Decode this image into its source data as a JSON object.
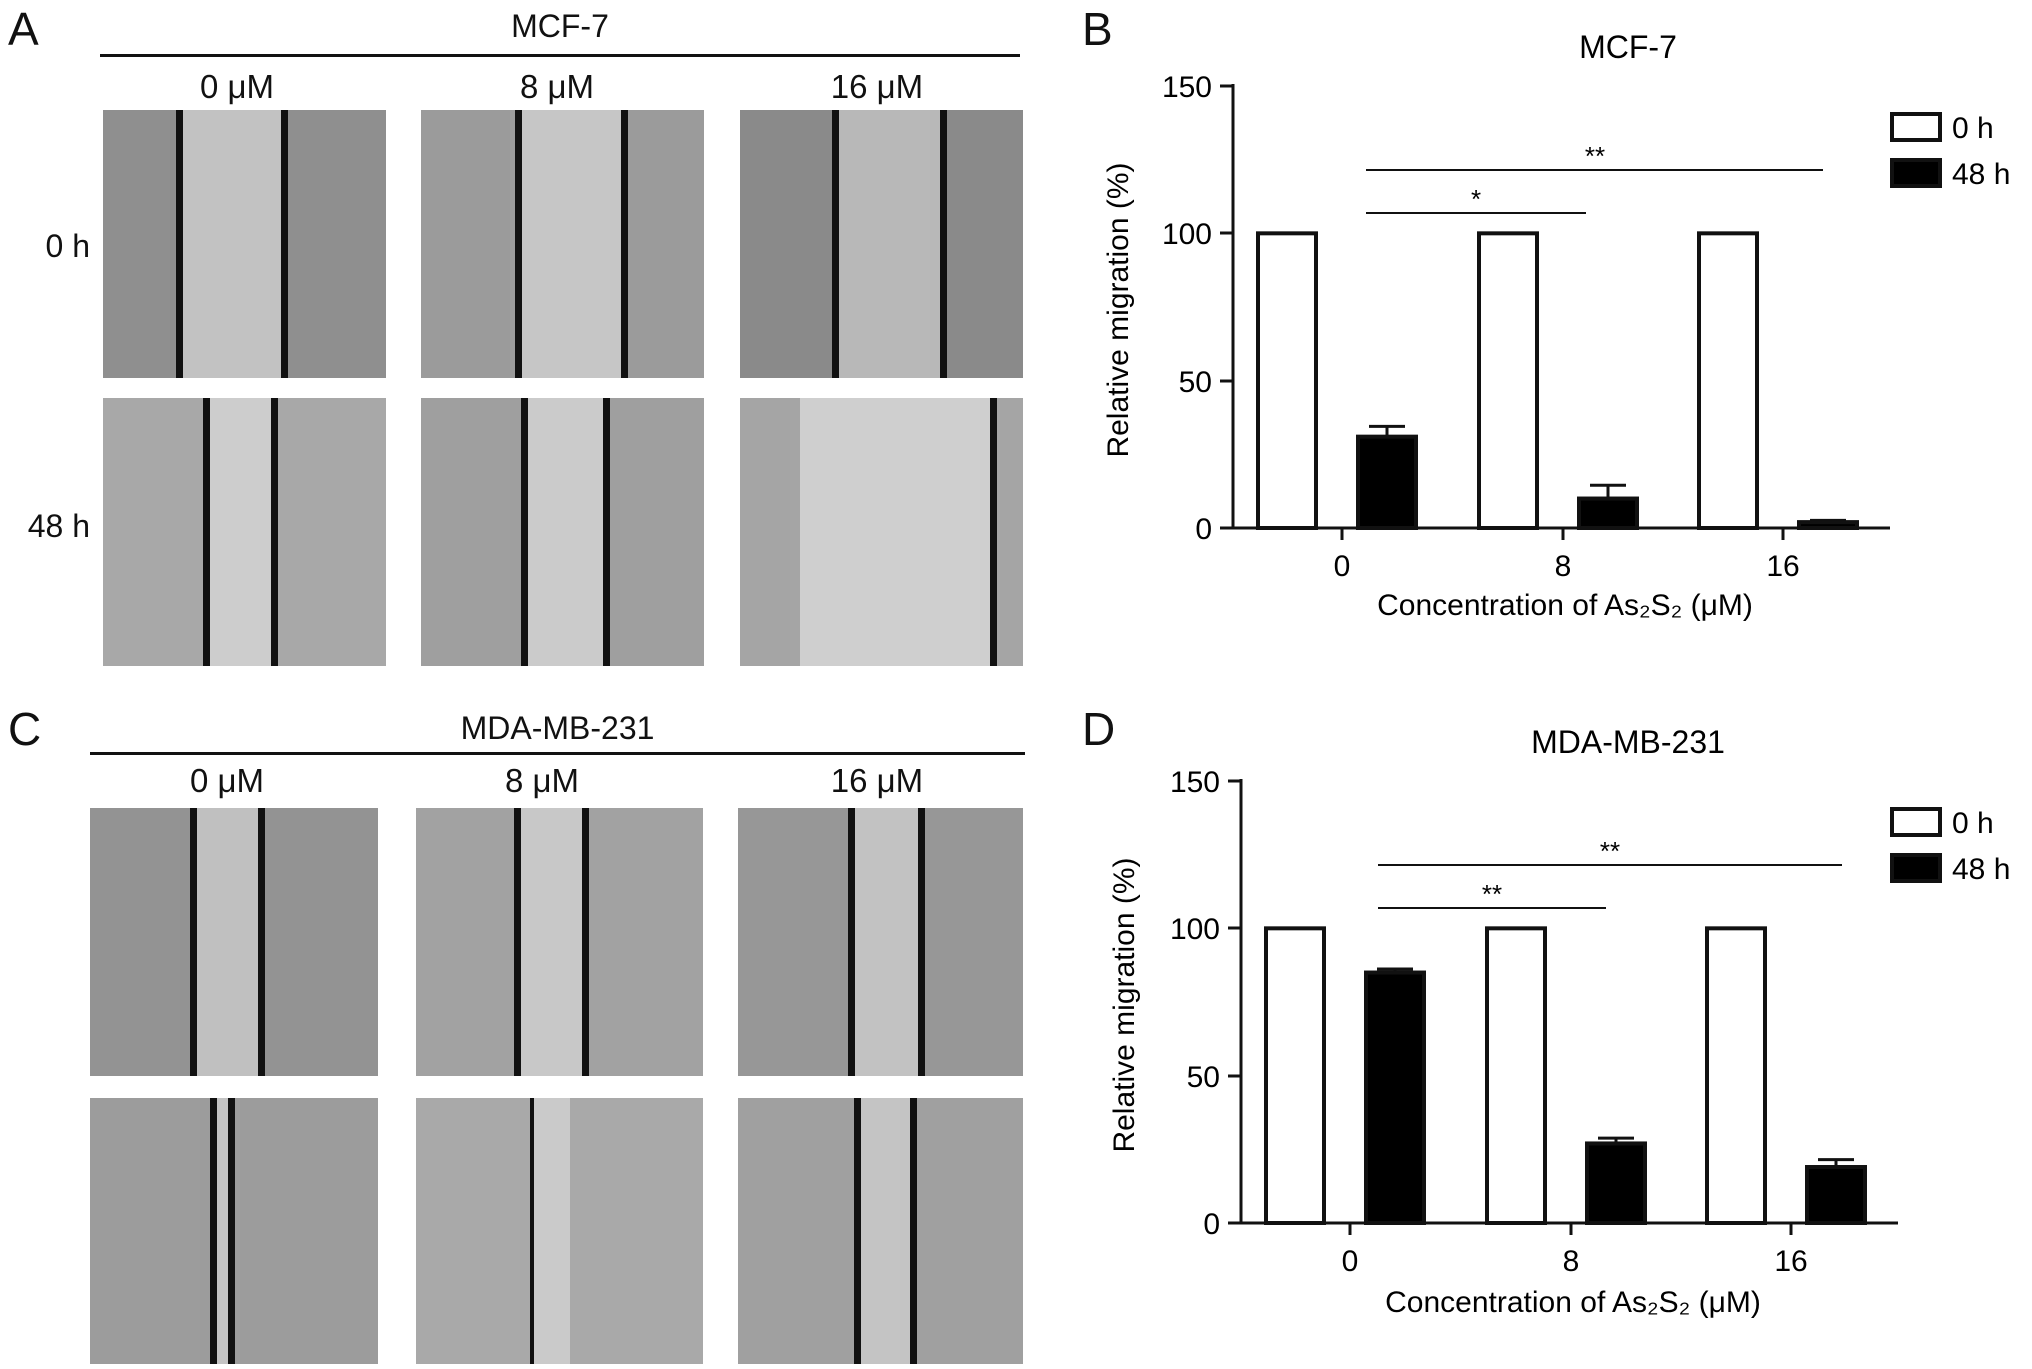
{
  "figure": {
    "panels": {
      "A": {
        "letter": "A",
        "cell_line": "MCF-7",
        "columns": [
          "0 μM",
          "8 μM",
          "16 μM"
        ],
        "rows": [
          "0 h",
          "48 h"
        ]
      },
      "B": {
        "letter": "B",
        "yticks": [
          "150",
          "100",
          "50",
          "0"
        ]
      },
      "C": {
        "letter": "C",
        "cell_line": "MDA-MB-231",
        "columns": [
          "0 μM",
          "8 μM",
          "16 μM"
        ]
      },
      "D": {
        "letter": "D",
        "yticks": [
          "150",
          "100",
          "50",
          "0"
        ]
      }
    }
  },
  "colors": {
    "bar_0h": "#ffffff",
    "bar_48h": "#000000",
    "micro_bg": "#9a9a9a",
    "wound": "#c4c4c4"
  },
  "chart_data": [
    {
      "id": "B",
      "type": "bar",
      "title": "MCF-7",
      "xlabel": "Concentration of As₂S₂ (μM)",
      "ylabel": "Relative migration (%)",
      "categories": [
        "0",
        "8",
        "16"
      ],
      "ylim": [
        0,
        150
      ],
      "series": [
        {
          "name": "0 h",
          "values": [
            100,
            100,
            100
          ],
          "errors": [
            0,
            0,
            0
          ],
          "color": "#ffffff"
        },
        {
          "name": "48 h",
          "values": [
            31,
            10,
            2
          ],
          "errors": [
            3.5,
            4.5,
            0.6
          ],
          "color": "#000000"
        }
      ],
      "significance": [
        {
          "from": "0",
          "to": "16",
          "label": "**"
        },
        {
          "from": "0",
          "to": "8",
          "label": "*"
        }
      ],
      "legend_position": "top-right",
      "grid": false
    },
    {
      "id": "D",
      "type": "bar",
      "title": "MDA-MB-231",
      "xlabel": "Concentration of As₂S₂ (μM)",
      "ylabel": "Relative migration (%)",
      "categories": [
        "0",
        "8",
        "16"
      ],
      "ylim": [
        0,
        150
      ],
      "series": [
        {
          "name": "0 h",
          "values": [
            100,
            100,
            100
          ],
          "errors": [
            0,
            0,
            0
          ],
          "color": "#ffffff"
        },
        {
          "name": "48 h",
          "values": [
            85,
            27,
            19
          ],
          "errors": [
            1.2,
            1.8,
            2.5
          ],
          "color": "#000000"
        }
      ],
      "significance": [
        {
          "from": "0",
          "to": "16",
          "label": "**"
        },
        {
          "from": "0",
          "to": "8",
          "label": "**"
        }
      ],
      "legend_position": "top-right",
      "grid": false
    }
  ]
}
